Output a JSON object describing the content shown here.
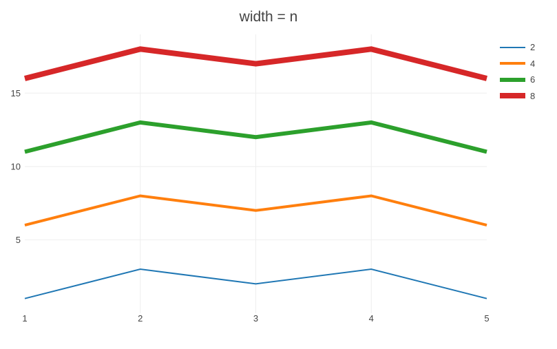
{
  "chart_data": {
    "type": "line",
    "title": "width = n",
    "x": [
      1,
      2,
      3,
      4,
      5
    ],
    "series": [
      {
        "name": "2",
        "color": "#1f77b4",
        "line_width": 2,
        "values": [
          1,
          3,
          2,
          3,
          1
        ]
      },
      {
        "name": "4",
        "color": "#ff7f0e",
        "line_width": 4,
        "values": [
          6,
          8,
          7,
          8,
          6
        ]
      },
      {
        "name": "6",
        "color": "#2ca02c",
        "line_width": 6,
        "values": [
          11,
          13,
          12,
          13,
          11
        ]
      },
      {
        "name": "8",
        "color": "#d62728",
        "line_width": 8,
        "values": [
          16,
          18,
          17,
          18,
          16
        ]
      }
    ],
    "xlabel": "",
    "ylabel": "",
    "xlim": [
      1,
      5
    ],
    "ylim": [
      0,
      19
    ],
    "xticks": [
      1,
      2,
      3,
      4,
      5
    ],
    "yticks": [
      5,
      10,
      15
    ],
    "grid": true,
    "legend_position": "top-right",
    "legend_labels": [
      "2",
      "4",
      "6",
      "8"
    ],
    "colors": {
      "text": "#444444",
      "grid": "#eeeeee",
      "background": "#ffffff"
    }
  }
}
